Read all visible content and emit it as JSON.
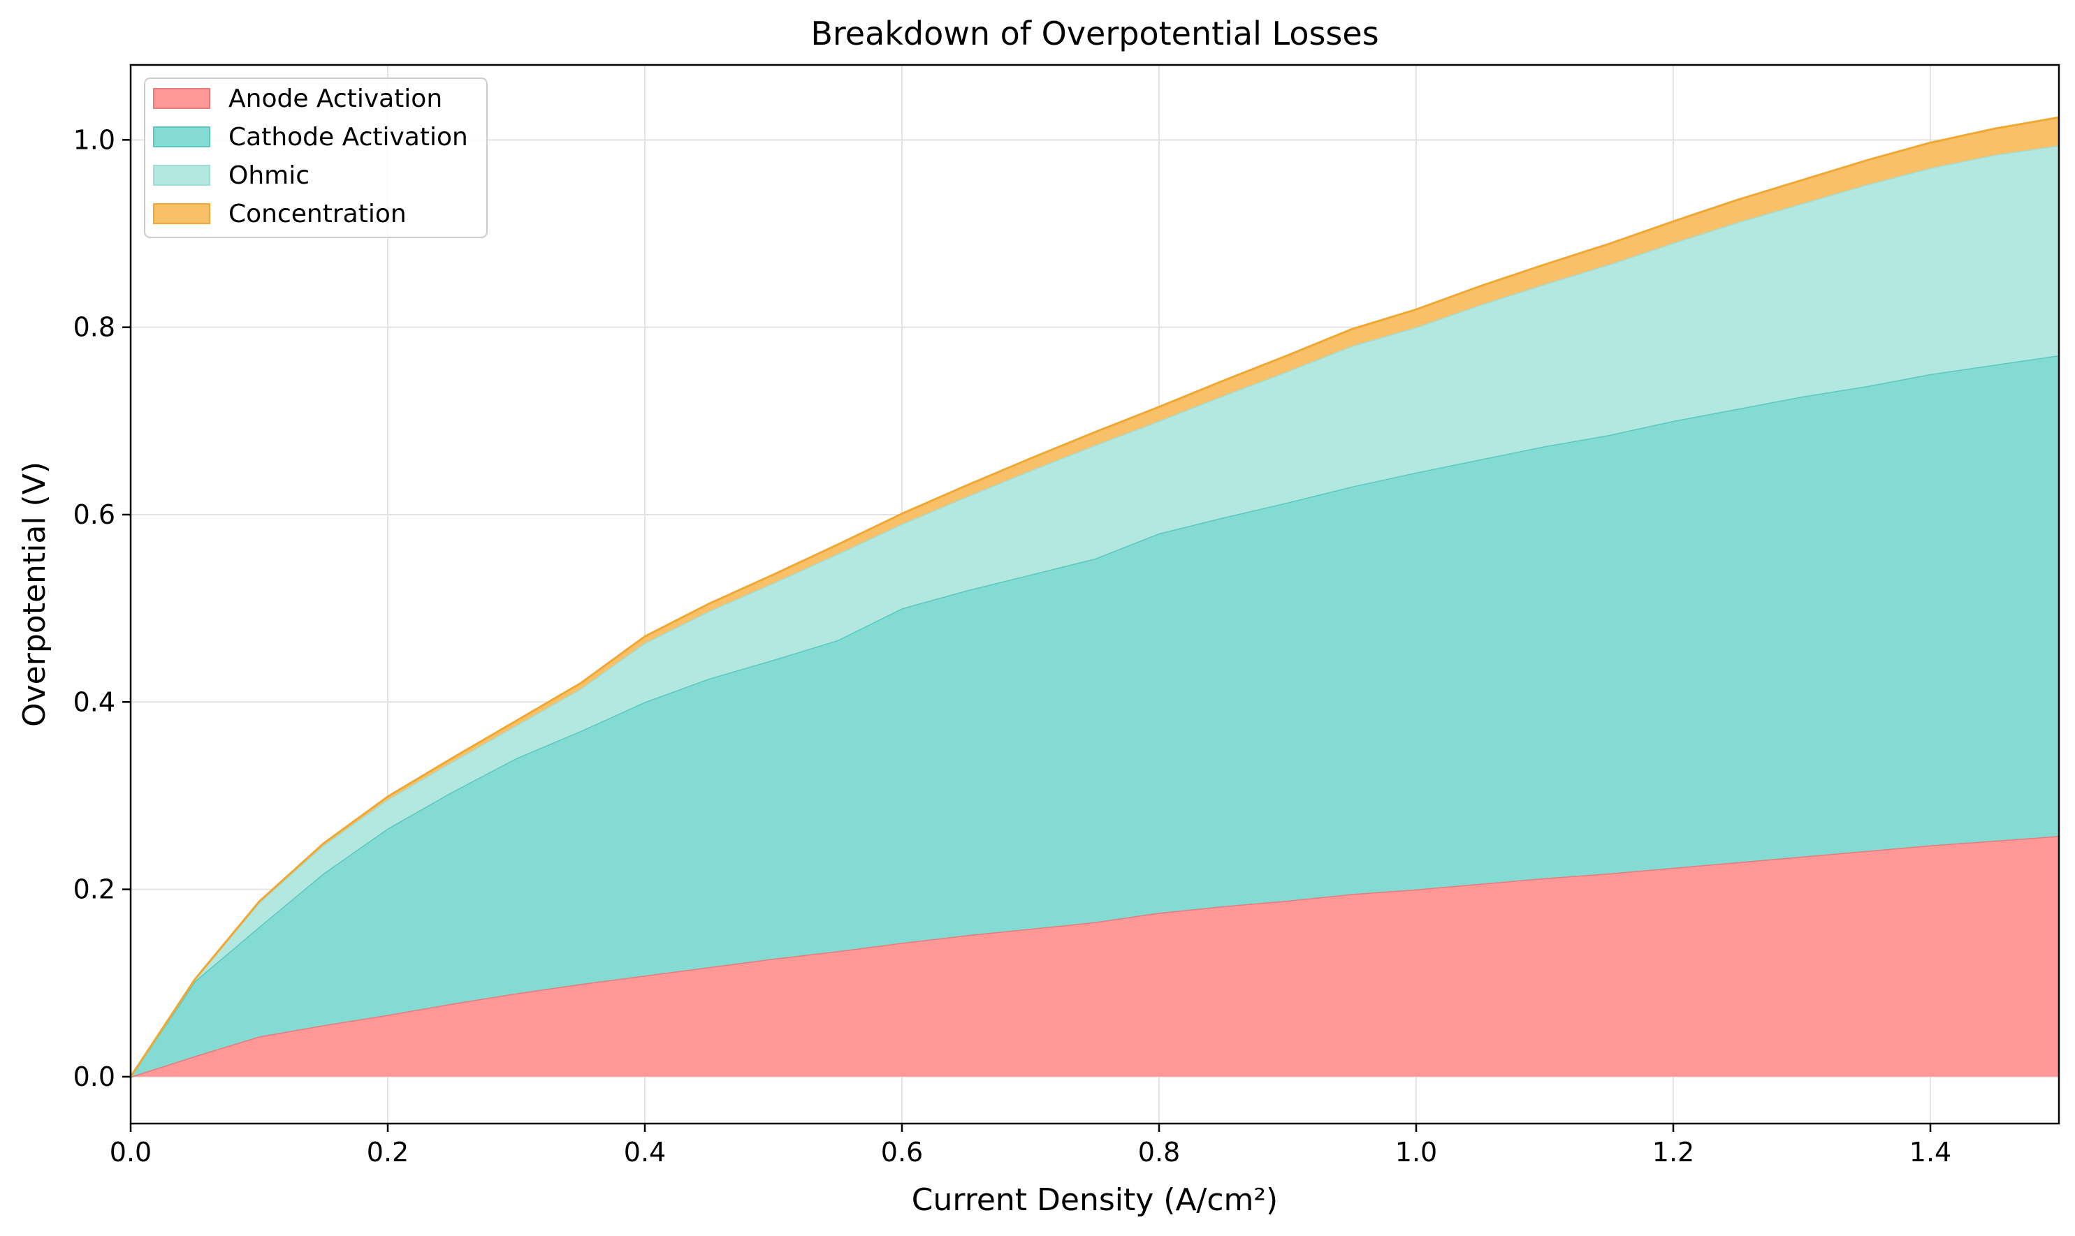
{
  "chart_data": {
    "type": "area",
    "stacked": true,
    "title": "Breakdown of Overpotential Losses",
    "xlabel": "Current Density (A/cm²)",
    "ylabel": "Overpotential (V)",
    "xlim": [
      0.0,
      1.5
    ],
    "ylim": [
      -0.05,
      1.08
    ],
    "xticks": [
      0.0,
      0.2,
      0.4,
      0.6,
      0.8,
      1.0,
      1.2,
      1.4
    ],
    "xtick_labels": [
      "0.0",
      "0.2",
      "0.4",
      "0.6",
      "0.8",
      "1.0",
      "1.2",
      "1.4"
    ],
    "yticks": [
      0.0,
      0.2,
      0.4,
      0.6,
      0.8,
      1.0
    ],
    "ytick_labels": [
      "0.0",
      "0.2",
      "0.4",
      "0.6",
      "0.8",
      "1.0"
    ],
    "grid": true,
    "legend_position": "top-left",
    "x": [
      0.0,
      0.05,
      0.1,
      0.15,
      0.2,
      0.25,
      0.3,
      0.35,
      0.4,
      0.45,
      0.5,
      0.55,
      0.6,
      0.65,
      0.7,
      0.75,
      0.8,
      0.85,
      0.9,
      0.95,
      1.0,
      1.05,
      1.1,
      1.15,
      1.2,
      1.25,
      1.3,
      1.35,
      1.4,
      1.45,
      1.5
    ],
    "series": [
      {
        "name": "Anode Activation",
        "color": "#ff9896",
        "edge": "#e87b7b",
        "values": [
          0.0,
          0.022,
          0.043,
          0.055,
          0.066,
          0.078,
          0.089,
          0.099,
          0.108,
          0.117,
          0.126,
          0.134,
          0.143,
          0.151,
          0.158,
          0.165,
          0.175,
          0.182,
          0.188,
          0.195,
          0.2,
          0.206,
          0.212,
          0.217,
          0.223,
          0.229,
          0.235,
          0.241,
          0.247,
          0.252,
          0.257
        ]
      },
      {
        "name": "Cathode Activation",
        "color": "#83dbd4",
        "edge": "#5cc9c0",
        "values": [
          0.0,
          0.08,
          0.117,
          0.162,
          0.199,
          0.226,
          0.251,
          0.27,
          0.292,
          0.308,
          0.319,
          0.332,
          0.357,
          0.368,
          0.378,
          0.388,
          0.405,
          0.415,
          0.425,
          0.435,
          0.445,
          0.453,
          0.461,
          0.468,
          0.477,
          0.484,
          0.491,
          0.496,
          0.503,
          0.508,
          0.513
        ]
      },
      {
        "name": "Ohmic",
        "color": "#b3e8e0",
        "edge": "#9fded5",
        "values": [
          0.0,
          0.002,
          0.026,
          0.03,
          0.031,
          0.032,
          0.035,
          0.045,
          0.063,
          0.072,
          0.082,
          0.092,
          0.09,
          0.1,
          0.111,
          0.121,
          0.12,
          0.13,
          0.14,
          0.15,
          0.155,
          0.165,
          0.173,
          0.182,
          0.19,
          0.199,
          0.206,
          0.215,
          0.22,
          0.224,
          0.224
        ]
      },
      {
        "name": "Concentration",
        "color": "#f9c06a",
        "edge": "#f0a830",
        "values": [
          0.0,
          0.0,
          0.001,
          0.002,
          0.003,
          0.004,
          0.005,
          0.006,
          0.007,
          0.008,
          0.009,
          0.01,
          0.011,
          0.012,
          0.013,
          0.014,
          0.015,
          0.016,
          0.017,
          0.018,
          0.019,
          0.02,
          0.021,
          0.022,
          0.023,
          0.024,
          0.025,
          0.026,
          0.027,
          0.028,
          0.03
        ]
      }
    ]
  }
}
